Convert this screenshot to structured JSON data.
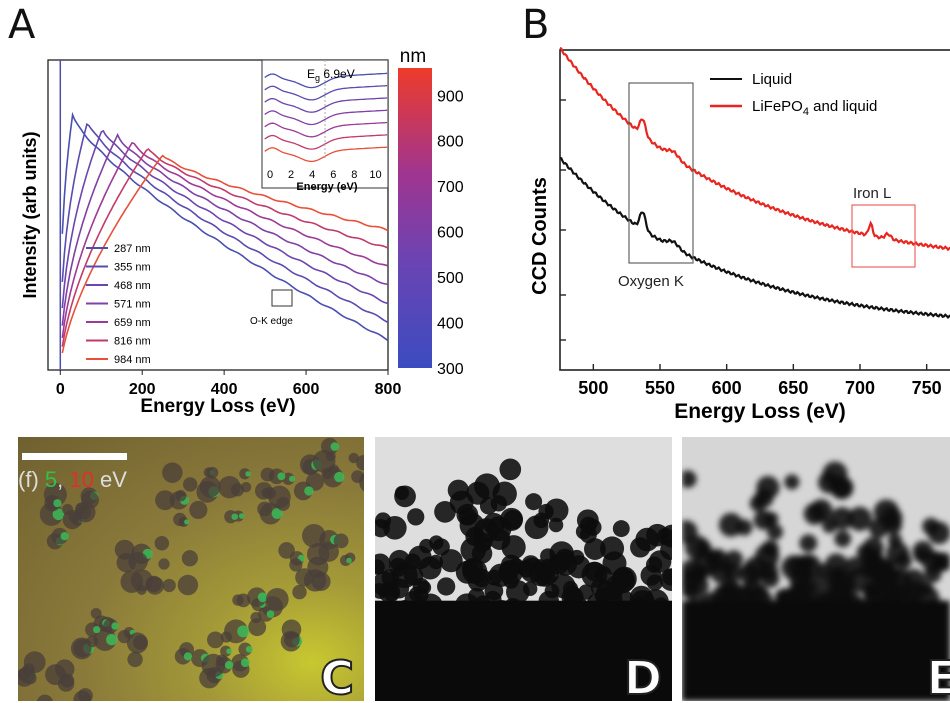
{
  "panels": {
    "a": {
      "letter": "A"
    },
    "b": {
      "letter": "B"
    },
    "c": {
      "letter": "C",
      "overlay_prefix": "(f) ",
      "overlay_green": "5",
      "overlay_sep": ", ",
      "overlay_red": "10",
      "overlay_suffix": " eV"
    },
    "d": {
      "letter": "D"
    },
    "e": {
      "letter": "E"
    }
  },
  "chart_data": [
    {
      "type": "line",
      "xlabel": "Energy Loss (eV)",
      "ylabel": "Intensity (arb units)",
      "xlim": [
        -30,
        800
      ],
      "xticks": [
        0,
        200,
        400,
        600,
        800
      ],
      "yscale": "log",
      "annotation": "O-K edge",
      "colorbar": {
        "title": "nm",
        "ticks": [
          300,
          400,
          500,
          600,
          700,
          800,
          900
        ],
        "colors": [
          "#3b4cc0",
          "#7a3fb0",
          "#c2306a",
          "#e8412f"
        ]
      },
      "series": [
        {
          "name": "287 nm",
          "color": "#4a4fb0"
        },
        {
          "name": "355 nm",
          "color": "#5a4bb0"
        },
        {
          "name": "468 nm",
          "color": "#6b46ae"
        },
        {
          "name": "571 nm",
          "color": "#8040a6"
        },
        {
          "name": "659 nm",
          "color": "#9c3a98"
        },
        {
          "name": "816 nm",
          "color": "#c23a6a"
        },
        {
          "name": "984 nm",
          "color": "#e8503a"
        }
      ],
      "inset": {
        "label": "Eg 6.9eV",
        "xlabel": "Energy (eV)",
        "xticks": [
          0,
          2,
          4,
          6,
          8,
          10
        ]
      }
    },
    {
      "type": "line",
      "xlabel": "Energy Loss (eV)",
      "ylabel": "CCD Counts",
      "xlim": [
        475,
        775
      ],
      "xticks": [
        500,
        550,
        600,
        650,
        700,
        750
      ],
      "series": [
        {
          "name": "Liquid",
          "color": "#111111"
        },
        {
          "name": "LiFePO4 and liquid",
          "color": "#e8251e"
        }
      ],
      "annotations": [
        "Oxygen K",
        "Iron L"
      ]
    }
  ],
  "labels": {
    "a_legend_title_unit": "nm",
    "a_inset_eg_main": "E",
    "a_inset_eg_sub": "g",
    "a_inset_eg_val": " 6.9eV",
    "b_legend_liquid": "Liquid",
    "b_legend_lfp_pre": "LiFePO",
    "b_legend_lfp_sub": "4",
    "b_legend_lfp_post": " and liquid"
  }
}
